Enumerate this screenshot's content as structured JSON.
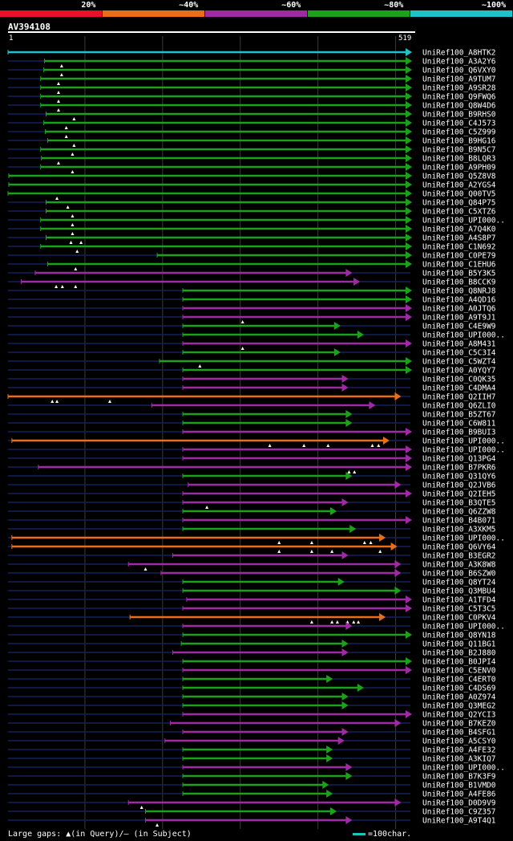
{
  "legend": {
    "bands": [
      {
        "label": "20%",
        "color": "#e8102c"
      },
      {
        "label": "~40%",
        "color": "#e86e1a"
      },
      {
        "label": "~60%",
        "color": "#a02aa6"
      },
      {
        "label": "~80%",
        "color": "#1aa21a"
      },
      {
        "label": "~100%",
        "color": "#22c0c8"
      }
    ]
  },
  "query": {
    "name": "AV394108",
    "start": "1",
    "end": "519",
    "length": 519
  },
  "footer": {
    "gaps_text": "Large gaps: ▲(in Query)/– (in Subject)",
    "scale_text": "=100char."
  },
  "chart_data": {
    "type": "alignment",
    "x_unit": "query residue",
    "x_range": [
      1,
      519
    ],
    "tracks": [
      {
        "label": "UniRef100_A8HTK2",
        "start": 1,
        "end": 519,
        "level": "~100%"
      },
      {
        "label": "UniRef100_A3A2Y6",
        "start": 48,
        "end": 519,
        "level": "~80%",
        "gaps": [
          70
        ]
      },
      {
        "label": "UniRef100_Q6VXY0",
        "start": 47,
        "end": 519,
        "level": "~80%",
        "gaps": [
          70
        ]
      },
      {
        "label": "UniRef100_A9TUM7",
        "start": 43,
        "end": 519,
        "level": "~80%",
        "gaps": [
          66
        ]
      },
      {
        "label": "UniRef100_A9SR28",
        "start": 43,
        "end": 519,
        "level": "~80%",
        "gaps": [
          66
        ]
      },
      {
        "label": "UniRef100_Q9FWQ6",
        "start": 43,
        "end": 519,
        "level": "~80%",
        "gaps": [
          66
        ]
      },
      {
        "label": "UniRef100_Q8W4D6",
        "start": 43,
        "end": 519,
        "level": "~80%",
        "gaps": [
          66
        ]
      },
      {
        "label": "UniRef100_B9RHS0",
        "start": 50,
        "end": 519,
        "level": "~80%",
        "gaps": [
          86
        ]
      },
      {
        "label": "UniRef100_C4J573",
        "start": 47,
        "end": 519,
        "level": "~80%",
        "gaps": [
          76
        ]
      },
      {
        "label": "UniRef100_C5Z999",
        "start": 49,
        "end": 519,
        "level": "~80%",
        "gaps": [
          76
        ]
      },
      {
        "label": "UniRef100_B9HG16",
        "start": 52,
        "end": 519,
        "level": "~80%",
        "gaps": [
          86
        ]
      },
      {
        "label": "UniRef100_B9N5C7",
        "start": 43,
        "end": 519,
        "level": "~80%",
        "gaps": [
          84
        ]
      },
      {
        "label": "UniRef100_B8LQR3",
        "start": 44,
        "end": 519,
        "level": "~80%",
        "gaps": [
          66
        ]
      },
      {
        "label": "UniRef100_A9PH09",
        "start": 43,
        "end": 519,
        "level": "~80%",
        "gaps": [
          84
        ]
      },
      {
        "label": "UniRef100_Q5Z8V8",
        "start": 2,
        "end": 519,
        "level": "~80%"
      },
      {
        "label": "UniRef100_A2YGS4",
        "start": 2,
        "end": 519,
        "level": "~80%"
      },
      {
        "label": "UniRef100_Q00TV5",
        "start": 1,
        "end": 519,
        "level": "~80%",
        "gaps": [
          64
        ]
      },
      {
        "label": "UniRef100_Q84P75",
        "start": 50,
        "end": 519,
        "level": "~80%",
        "gaps": [
          78
        ]
      },
      {
        "label": "UniRef100_C5XTZ6",
        "start": 50,
        "end": 519,
        "level": "~80%",
        "gaps": [
          84
        ]
      },
      {
        "label": "UniRef100_UPI000..",
        "start": 43,
        "end": 519,
        "level": "~80%",
        "gaps": [
          84
        ]
      },
      {
        "label": "UniRef100_A7Q4K0",
        "start": 43,
        "end": 519,
        "level": "~80%",
        "gaps": [
          84
        ]
      },
      {
        "label": "UniRef100_A4S8P7",
        "start": 50,
        "end": 519,
        "level": "~80%",
        "gaps": [
          82,
          95
        ]
      },
      {
        "label": "UniRef100_C1N692",
        "start": 43,
        "end": 519,
        "level": "~80%",
        "gaps": [
          90
        ]
      },
      {
        "label": "UniRef100_C0PE79",
        "start": 193,
        "end": 519,
        "level": "~80%"
      },
      {
        "label": "UniRef100_C1EHU6",
        "start": 52,
        "end": 519,
        "level": "~80%",
        "gaps": [
          88
        ]
      },
      {
        "label": "UniRef100_B5Y3K5",
        "start": 36,
        "end": 442,
        "level": "~60%"
      },
      {
        "label": "UniRef100_B8CCK9",
        "start": 18,
        "end": 452,
        "level": "~60%",
        "gaps": [
          63,
          71,
          88
        ]
      },
      {
        "label": "UniRef100_Q8NRJ8",
        "start": 226,
        "end": 519,
        "level": "~80%"
      },
      {
        "label": "UniRef100_A4QD16",
        "start": 226,
        "end": 519,
        "level": "~80%"
      },
      {
        "label": "UniRef100_A0JTQ6",
        "start": 226,
        "end": 519,
        "level": "~60%"
      },
      {
        "label": "UniRef100_A9T9J1",
        "start": 226,
        "end": 519,
        "level": "~60%",
        "gaps": [
          303
        ]
      },
      {
        "label": "UniRef100_C4E9W9",
        "start": 226,
        "end": 427,
        "level": "~80%"
      },
      {
        "label": "UniRef100_UPI000..",
        "start": 226,
        "end": 457,
        "level": "~80%"
      },
      {
        "label": "UniRef100_A8M431",
        "start": 226,
        "end": 519,
        "level": "~60%",
        "gaps": [
          303
        ]
      },
      {
        "label": "UniRef100_C5C3I4",
        "start": 226,
        "end": 427,
        "level": "~80%"
      },
      {
        "label": "UniRef100_C5WZT4",
        "start": 196,
        "end": 519,
        "level": "~80%",
        "gaps": [
          248
        ]
      },
      {
        "label": "UniRef100_A0YQY7",
        "start": 226,
        "end": 519,
        "level": "~80%"
      },
      {
        "label": "UniRef100_C0QK35",
        "start": 226,
        "end": 437,
        "level": "~60%"
      },
      {
        "label": "UniRef100_C4DMA4",
        "start": 226,
        "end": 437,
        "level": "~60%"
      },
      {
        "label": "UniRef100_Q2IIH7",
        "start": 1,
        "end": 505,
        "level": "~40%",
        "gaps": [
          58,
          64,
          132
        ]
      },
      {
        "label": "UniRef100_Q6ZLI0",
        "start": 186,
        "end": 472,
        "level": "~60%"
      },
      {
        "label": "UniRef100_B5ZT67",
        "start": 226,
        "end": 442,
        "level": "~80%"
      },
      {
        "label": "UniRef100_C6W811",
        "start": 226,
        "end": 442,
        "level": "~80%"
      },
      {
        "label": "UniRef100_B9BUI3",
        "start": 226,
        "end": 519,
        "level": "~60%"
      },
      {
        "label": "UniRef100_UPI000..",
        "start": 6,
        "end": 490,
        "level": "~40%",
        "gaps": [
          338,
          382,
          413,
          470,
          478
        ]
      },
      {
        "label": "UniRef100_UPI000..",
        "start": 226,
        "end": 519,
        "level": "~60%"
      },
      {
        "label": "UniRef100_Q13PG4",
        "start": 226,
        "end": 519,
        "level": "~60%"
      },
      {
        "label": "UniRef100_B7PKR6",
        "start": 40,
        "end": 519,
        "level": "~60%",
        "gaps": [
          440,
          447
        ]
      },
      {
        "label": "UniRef100_Q31QY6",
        "start": 226,
        "end": 442,
        "level": "~80%"
      },
      {
        "label": "UniRef100_Q2JVB6",
        "start": 233,
        "end": 505,
        "level": "~60%"
      },
      {
        "label": "UniRef100_Q2IEH5",
        "start": 226,
        "end": 519,
        "level": "~60%"
      },
      {
        "label": "UniRef100_B3QTE5",
        "start": 226,
        "end": 437,
        "level": "~60%",
        "gaps": [
          257
        ]
      },
      {
        "label": "UniRef100_Q6ZZW8",
        "start": 226,
        "end": 422,
        "level": "~80%"
      },
      {
        "label": "UniRef100_B4B071",
        "start": 226,
        "end": 519,
        "level": "~60%"
      },
      {
        "label": "UniRef100_A3XKM5",
        "start": 226,
        "end": 447,
        "level": "~80%"
      },
      {
        "label": "UniRef100_UPI000..",
        "start": 6,
        "end": 485,
        "level": "~40%",
        "gaps": [
          350,
          392,
          460,
          468
        ]
      },
      {
        "label": "UniRef100_Q6VY64",
        "start": 6,
        "end": 500,
        "level": "~40%",
        "gaps": [
          350,
          392,
          418,
          480
        ]
      },
      {
        "label": "UniRef100_B3EGR2",
        "start": 213,
        "end": 437,
        "level": "~60%"
      },
      {
        "label": "UniRef100_A3K8W8",
        "start": 156,
        "end": 505,
        "level": "~60%",
        "gaps": [
          178
        ]
      },
      {
        "label": "UniRef100_B6SZW0",
        "start": 198,
        "end": 505,
        "level": "~60%"
      },
      {
        "label": "UniRef100_Q8YT24",
        "start": 226,
        "end": 432,
        "level": "~80%"
      },
      {
        "label": "UniRef100_Q3MBU4",
        "start": 226,
        "end": 505,
        "level": "~80%"
      },
      {
        "label": "UniRef100_A1TFD4",
        "start": 231,
        "end": 519,
        "level": "~60%"
      },
      {
        "label": "UniRef100_C5T3C5",
        "start": 226,
        "end": 519,
        "level": "~60%"
      },
      {
        "label": "UniRef100_C0PKV4",
        "start": 158,
        "end": 485,
        "level": "~40%",
        "gaps": [
          392,
          418,
          425,
          438,
          446,
          452
        ]
      },
      {
        "label": "UniRef100_UPI000..",
        "start": 226,
        "end": 442,
        "level": "~60%"
      },
      {
        "label": "UniRef100_Q8YN18",
        "start": 226,
        "end": 519,
        "level": "~80%"
      },
      {
        "label": "UniRef100_Q11BG1",
        "start": 224,
        "end": 437,
        "level": "~80%"
      },
      {
        "label": "UniRef100_B2J880",
        "start": 213,
        "end": 437,
        "level": "~60%"
      },
      {
        "label": "UniRef100_B0JPI4",
        "start": 226,
        "end": 519,
        "level": "~80%"
      },
      {
        "label": "UniRef100_C5ENV0",
        "start": 226,
        "end": 519,
        "level": "~60%"
      },
      {
        "label": "UniRef100_C4ERT0",
        "start": 226,
        "end": 417,
        "level": "~80%"
      },
      {
        "label": "UniRef100_C4DS69",
        "start": 226,
        "end": 457,
        "level": "~80%"
      },
      {
        "label": "UniRef100_A0Z974",
        "start": 226,
        "end": 437,
        "level": "~80%"
      },
      {
        "label": "UniRef100_Q3MEG2",
        "start": 226,
        "end": 437,
        "level": "~80%"
      },
      {
        "label": "UniRef100_Q2YCI3",
        "start": 226,
        "end": 519,
        "level": "~60%"
      },
      {
        "label": "UniRef100_B7KEZ0",
        "start": 210,
        "end": 505,
        "level": "~60%"
      },
      {
        "label": "UniRef100_B4SFG1",
        "start": 226,
        "end": 437,
        "level": "~60%"
      },
      {
        "label": "UniRef100_A5CSY0",
        "start": 203,
        "end": 432,
        "level": "~60%"
      },
      {
        "label": "UniRef100_A4FE32",
        "start": 226,
        "end": 417,
        "level": "~80%"
      },
      {
        "label": "UniRef100_A3KIQ7",
        "start": 226,
        "end": 417,
        "level": "~80%"
      },
      {
        "label": "UniRef100_UPI000..",
        "start": 226,
        "end": 442,
        "level": "~60%"
      },
      {
        "label": "UniRef100_B7K3F9",
        "start": 226,
        "end": 442,
        "level": "~80%"
      },
      {
        "label": "UniRef100_B1VMD0",
        "start": 226,
        "end": 412,
        "level": "~80%"
      },
      {
        "label": "UniRef100_A4FE86",
        "start": 226,
        "end": 417,
        "level": "~80%"
      },
      {
        "label": "UniRef100_D0D9V9",
        "start": 156,
        "end": 505,
        "level": "~60%",
        "gaps": [
          173
        ]
      },
      {
        "label": "UniRef100_C9Z357",
        "start": 178,
        "end": 422,
        "level": "~80%"
      },
      {
        "label": "UniRef100_A9T4Q1",
        "start": 178,
        "end": 442,
        "level": "~60%",
        "gaps": [
          193
        ]
      }
    ]
  }
}
